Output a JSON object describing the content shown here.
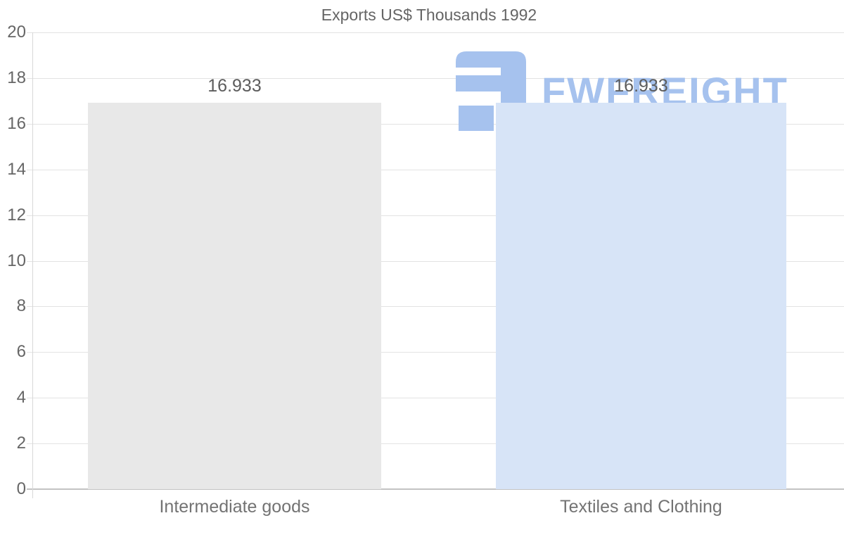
{
  "title": "Exports US$ Thousands 1992",
  "watermark": {
    "text": "FWFREIGHT"
  },
  "colors": {
    "bar_gray": "#e8e8e8",
    "bar_blue": "#d7e4f7",
    "watermark_blue": "#a6c2ee",
    "grid": "#e3e3e3",
    "baseline": "#c3c3c3",
    "text_gray": "#666666"
  },
  "chart_data": {
    "type": "bar",
    "title": "Exports US$ Thousands 1992",
    "categories": [
      "Intermediate goods",
      "Textiles and Clothing"
    ],
    "values": [
      16.933,
      16.933
    ],
    "value_labels": [
      "16.933",
      "16.933"
    ],
    "xlabel": "",
    "ylabel": "",
    "ylim": [
      0,
      20
    ],
    "ytick_step": 2,
    "ytick_labels": [
      "0",
      "2",
      "4",
      "6",
      "8",
      "10",
      "12",
      "14",
      "16",
      "18",
      "20"
    ],
    "grid": true,
    "legend": false,
    "bar_colors": [
      "#e8e8e8",
      "#d7e4f7"
    ]
  }
}
